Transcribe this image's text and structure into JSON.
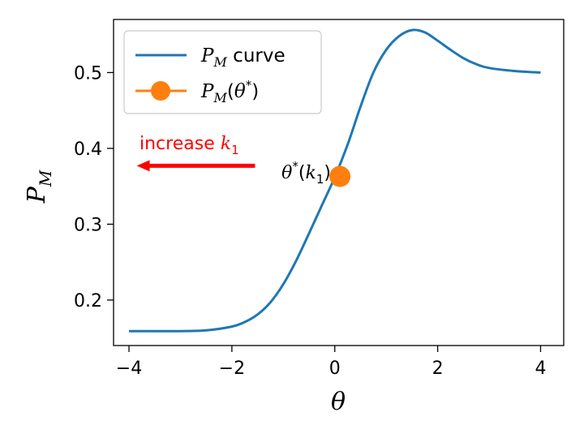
{
  "chart_data": {
    "type": "line",
    "title": "",
    "xlabel": "θ",
    "ylabel": "P_M",
    "xlim": [
      -4.3,
      4.45
    ],
    "ylim": [
      0.14,
      0.57
    ],
    "x_ticks": [
      -4,
      -2,
      0,
      2,
      4
    ],
    "y_ticks": [
      0.2,
      0.3,
      0.4,
      0.5
    ],
    "x_tick_labels": [
      "−4",
      "−2",
      "0",
      "2",
      "4"
    ],
    "y_tick_labels": [
      "0.2",
      "0.3",
      "0.4",
      "0.5"
    ],
    "grid": false,
    "legend_position": "top-left",
    "series": [
      {
        "name": "P_M curve",
        "color": "#1f77b4",
        "x": [
          -4.0,
          -3.5,
          -3.0,
          -2.5,
          -2.0,
          -1.75,
          -1.5,
          -1.25,
          -1.0,
          -0.75,
          -0.5,
          -0.25,
          0.0,
          0.25,
          0.5,
          0.75,
          1.0,
          1.25,
          1.5,
          1.75,
          2.0,
          2.25,
          2.5,
          2.75,
          3.0,
          3.5,
          4.0
        ],
        "y": [
          0.159,
          0.159,
          0.159,
          0.16,
          0.165,
          0.171,
          0.181,
          0.197,
          0.221,
          0.252,
          0.288,
          0.325,
          0.362,
          0.405,
          0.455,
          0.5,
          0.53,
          0.548,
          0.556,
          0.553,
          0.542,
          0.53,
          0.519,
          0.511,
          0.506,
          0.502,
          0.5
        ]
      },
      {
        "name": "P_M(θ*)",
        "color": "#ff7f0e",
        "x": [
          0.1
        ],
        "y": [
          0.363
        ]
      }
    ],
    "annotations": [
      {
        "text": "θ*(k₁)",
        "x": 0.1,
        "y": 0.363
      },
      {
        "text": "increase k₁",
        "color": "#ff0000",
        "arrow_from": [
          -1.55,
          0.377
        ],
        "arrow_to": [
          -3.85,
          0.377
        ]
      }
    ],
    "legend": {
      "entries": [
        {
          "label_main": "P",
          "label_sub": "M",
          "label_rest": " curve"
        },
        {
          "label_main": "P",
          "label_sub": "M",
          "label_rest": "(θ*)"
        }
      ]
    }
  },
  "colors": {
    "curve": "#1f77b4",
    "point": "#ff7f0e",
    "arrow": "#ff0000"
  }
}
